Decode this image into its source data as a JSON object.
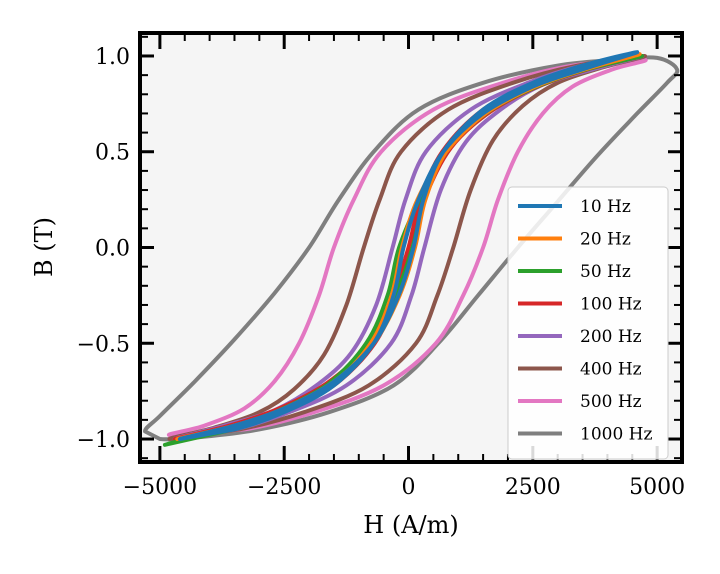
{
  "chart_data": {
    "type": "line",
    "title": "",
    "xlabel": "H (A/m)",
    "ylabel": "B (T)",
    "xlim": [
      -5400,
      5500
    ],
    "ylim": [
      -1.12,
      1.12
    ],
    "x_ticks": [
      -5000,
      -2500,
      0,
      2500,
      5000
    ],
    "x_tick_labels": [
      "−5000",
      "−2500",
      "0",
      "2500",
      "5000"
    ],
    "y_ticks": [
      -1.0,
      -0.5,
      0.0,
      0.5,
      1.0
    ],
    "y_tick_labels": [
      "−1.0",
      "−0.5",
      "0.0",
      "0.5",
      "1.0"
    ],
    "grid": false,
    "legend_position": "lower-right",
    "colors": {
      "plot_background": "#f5f5f5",
      "axes": "#000000"
    },
    "series": [
      {
        "name": "10 Hz",
        "color": "#1f77b4",
        "upper": [
          [
            -4600,
            -1.0
          ],
          [
            -3500,
            -0.93
          ],
          [
            -2500,
            -0.84
          ],
          [
            -1500,
            -0.7
          ],
          [
            -700,
            -0.5
          ],
          [
            -200,
            -0.25
          ],
          [
            100,
            0.0
          ],
          [
            300,
            0.25
          ],
          [
            700,
            0.5
          ],
          [
            1500,
            0.72
          ],
          [
            2500,
            0.86
          ],
          [
            3500,
            0.95
          ],
          [
            4600,
            1.02
          ]
        ],
        "lower": [
          [
            4600,
            1.02
          ],
          [
            3500,
            0.93
          ],
          [
            2500,
            0.84
          ],
          [
            1500,
            0.7
          ],
          [
            700,
            0.5
          ],
          [
            200,
            0.25
          ],
          [
            -100,
            0.0
          ],
          [
            -300,
            -0.25
          ],
          [
            -700,
            -0.5
          ],
          [
            -1500,
            -0.72
          ],
          [
            -2500,
            -0.86
          ],
          [
            -3500,
            -0.95
          ],
          [
            -4600,
            -1.0
          ]
        ]
      },
      {
        "name": "20 Hz",
        "color": "#ff7f0e",
        "upper": [
          [
            -4650,
            -1.0
          ],
          [
            -3500,
            -0.93
          ],
          [
            -2500,
            -0.84
          ],
          [
            -1500,
            -0.7
          ],
          [
            -700,
            -0.5
          ],
          [
            -180,
            -0.25
          ],
          [
            130,
            0.0
          ],
          [
            340,
            0.25
          ],
          [
            760,
            0.5
          ],
          [
            1550,
            0.72
          ],
          [
            2550,
            0.86
          ],
          [
            3550,
            0.95
          ],
          [
            4650,
            1.01
          ]
        ],
        "lower": [
          [
            4650,
            1.01
          ],
          [
            3550,
            0.93
          ],
          [
            2550,
            0.84
          ],
          [
            1550,
            0.7
          ],
          [
            760,
            0.5
          ],
          [
            180,
            0.25
          ],
          [
            -130,
            0.0
          ],
          [
            -340,
            -0.25
          ],
          [
            -760,
            -0.5
          ],
          [
            -1550,
            -0.72
          ],
          [
            -2550,
            -0.86
          ],
          [
            -3550,
            -0.95
          ],
          [
            -4650,
            -1.0
          ]
        ]
      },
      {
        "name": "50 Hz",
        "color": "#2ca02c",
        "upper": [
          [
            -4900,
            -1.03
          ],
          [
            -3600,
            -0.94
          ],
          [
            -2600,
            -0.85
          ],
          [
            -1600,
            -0.71
          ],
          [
            -800,
            -0.51
          ],
          [
            -260,
            -0.25
          ],
          [
            80,
            0.0
          ],
          [
            320,
            0.25
          ],
          [
            760,
            0.5
          ],
          [
            1560,
            0.72
          ],
          [
            2580,
            0.86
          ],
          [
            3580,
            0.95
          ],
          [
            4700,
            1.0
          ]
        ],
        "lower": [
          [
            4700,
            1.0
          ],
          [
            3580,
            0.93
          ],
          [
            2580,
            0.84
          ],
          [
            1560,
            0.7
          ],
          [
            760,
            0.5
          ],
          [
            220,
            0.25
          ],
          [
            -190,
            0.0
          ],
          [
            -420,
            -0.25
          ],
          [
            -850,
            -0.5
          ],
          [
            -1650,
            -0.72
          ],
          [
            -2650,
            -0.87
          ],
          [
            -3700,
            -0.96
          ],
          [
            -4900,
            -1.03
          ]
        ]
      },
      {
        "name": "100 Hz",
        "color": "#d62728",
        "upper": [
          [
            -4700,
            -1.0
          ],
          [
            -3600,
            -0.93
          ],
          [
            -2600,
            -0.84
          ],
          [
            -1650,
            -0.71
          ],
          [
            -850,
            -0.52
          ],
          [
            -330,
            -0.26
          ],
          [
            0,
            0.0
          ],
          [
            240,
            0.25
          ],
          [
            680,
            0.5
          ],
          [
            1500,
            0.72
          ],
          [
            2550,
            0.86
          ],
          [
            3600,
            0.95
          ],
          [
            4700,
            1.0
          ]
        ],
        "lower": [
          [
            4700,
            1.0
          ],
          [
            3600,
            0.93
          ],
          [
            2600,
            0.84
          ],
          [
            1650,
            0.71
          ],
          [
            850,
            0.52
          ],
          [
            330,
            0.26
          ],
          [
            0,
            0.0
          ],
          [
            -240,
            -0.25
          ],
          [
            -680,
            -0.5
          ],
          [
            -1500,
            -0.72
          ],
          [
            -2550,
            -0.86
          ],
          [
            -3600,
            -0.95
          ],
          [
            -4700,
            -1.0
          ]
        ]
      },
      {
        "name": "200 Hz",
        "color": "#9467bd",
        "upper": [
          [
            -4700,
            -1.0
          ],
          [
            -3700,
            -0.93
          ],
          [
            -2700,
            -0.85
          ],
          [
            -1850,
            -0.72
          ],
          [
            -1150,
            -0.55
          ],
          [
            -650,
            -0.3
          ],
          [
            -320,
            0.0
          ],
          [
            -60,
            0.25
          ],
          [
            350,
            0.5
          ],
          [
            1250,
            0.72
          ],
          [
            2400,
            0.86
          ],
          [
            3500,
            0.95
          ],
          [
            4700,
            1.0
          ]
        ],
        "lower": [
          [
            4700,
            1.0
          ],
          [
            3700,
            0.93
          ],
          [
            2700,
            0.85
          ],
          [
            1850,
            0.72
          ],
          [
            1150,
            0.55
          ],
          [
            650,
            0.3
          ],
          [
            320,
            0.0
          ],
          [
            60,
            -0.25
          ],
          [
            -350,
            -0.5
          ],
          [
            -1250,
            -0.72
          ],
          [
            -2400,
            -0.86
          ],
          [
            -3500,
            -0.95
          ],
          [
            -4700,
            -1.0
          ]
        ]
      },
      {
        "name": "400 Hz",
        "color": "#8c564b",
        "upper": [
          [
            -4800,
            -1.0
          ],
          [
            -3900,
            -0.94
          ],
          [
            -3000,
            -0.86
          ],
          [
            -2300,
            -0.74
          ],
          [
            -1700,
            -0.56
          ],
          [
            -1250,
            -0.3
          ],
          [
            -900,
            0.0
          ],
          [
            -580,
            0.25
          ],
          [
            -150,
            0.5
          ],
          [
            800,
            0.72
          ],
          [
            2100,
            0.86
          ],
          [
            3400,
            0.95
          ],
          [
            4750,
            1.0
          ]
        ],
        "lower": [
          [
            4750,
            1.0
          ],
          [
            3900,
            0.94
          ],
          [
            3000,
            0.86
          ],
          [
            2300,
            0.74
          ],
          [
            1700,
            0.56
          ],
          [
            1250,
            0.3
          ],
          [
            900,
            0.0
          ],
          [
            580,
            -0.25
          ],
          [
            150,
            -0.5
          ],
          [
            -800,
            -0.72
          ],
          [
            -2100,
            -0.86
          ],
          [
            -3400,
            -0.95
          ],
          [
            -4750,
            -1.0
          ]
        ]
      },
      {
        "name": "500 Hz",
        "color": "#e377c2",
        "upper": [
          [
            -4800,
            -0.98
          ],
          [
            -4100,
            -0.93
          ],
          [
            -3300,
            -0.84
          ],
          [
            -2700,
            -0.7
          ],
          [
            -2200,
            -0.5
          ],
          [
            -1800,
            -0.25
          ],
          [
            -1500,
            0.0
          ],
          [
            -1100,
            0.25
          ],
          [
            -550,
            0.5
          ],
          [
            500,
            0.72
          ],
          [
            1900,
            0.86
          ],
          [
            3300,
            0.95
          ],
          [
            4750,
            0.98
          ]
        ],
        "lower": [
          [
            4750,
            0.98
          ],
          [
            4100,
            0.93
          ],
          [
            3300,
            0.84
          ],
          [
            2700,
            0.7
          ],
          [
            2200,
            0.5
          ],
          [
            1800,
            0.25
          ],
          [
            1500,
            0.0
          ],
          [
            1100,
            -0.25
          ],
          [
            550,
            -0.5
          ],
          [
            -500,
            -0.72
          ],
          [
            -1900,
            -0.86
          ],
          [
            -3300,
            -0.95
          ],
          [
            -4800,
            -0.98
          ]
        ]
      },
      {
        "name": "1000 Hz",
        "color": "#7f7f7f",
        "upper": [
          [
            -5300,
            -0.96
          ],
          [
            -5000,
            -0.88
          ],
          [
            -4300,
            -0.7
          ],
          [
            -3500,
            -0.48
          ],
          [
            -2700,
            -0.24
          ],
          [
            -2000,
            0.0
          ],
          [
            -1400,
            0.25
          ],
          [
            -700,
            0.5
          ],
          [
            200,
            0.72
          ],
          [
            1500,
            0.86
          ],
          [
            3000,
            0.95
          ],
          [
            4200,
            0.98
          ],
          [
            5000,
            0.99
          ],
          [
            5400,
            0.93
          ]
        ],
        "lower": [
          [
            5400,
            0.93
          ],
          [
            5200,
            0.86
          ],
          [
            4600,
            0.7
          ],
          [
            3800,
            0.48
          ],
          [
            3000,
            0.24
          ],
          [
            2200,
            0.0
          ],
          [
            1400,
            -0.25
          ],
          [
            600,
            -0.5
          ],
          [
            -300,
            -0.72
          ],
          [
            -1600,
            -0.86
          ],
          [
            -3000,
            -0.95
          ],
          [
            -4200,
            -0.99
          ],
          [
            -5000,
            -1.0
          ],
          [
            -5300,
            -0.96
          ]
        ]
      }
    ]
  }
}
